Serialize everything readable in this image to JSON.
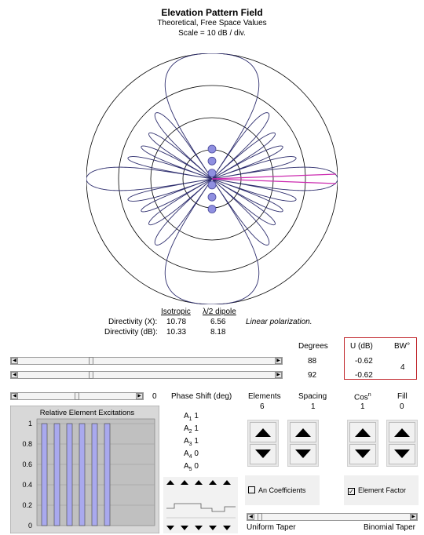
{
  "header": {
    "title": "Elevation Pattern Field",
    "subtitle": "Theoretical, Free Space Values",
    "scale": "Scale = 10  dB / div."
  },
  "directivity": {
    "col_isotropic": "Isotropic",
    "col_dipole": "λ/2 dipole",
    "row_x_label": "Directivity (X):",
    "row_db_label": "Directivity (dB):",
    "x_iso": "10.78",
    "x_dip": "6.56",
    "db_iso": "10.33",
    "db_dip": "8.18",
    "polarization": "Linear polarization."
  },
  "controls": {
    "degrees_label": "Degrees",
    "u_db_label": "U (dB)",
    "bw_label": "BW°",
    "slider1_value": "88",
    "slider2_value": "92",
    "u1": "-0.62",
    "u2": "-0.62",
    "bw": "4",
    "slider3_value": "0",
    "slider1_fraction": 0.28,
    "slider2_fraction": 0.28,
    "slider3_fraction": 0.5
  },
  "excitations": {
    "title": "Relative Element Excitations",
    "y_ticks": [
      "1",
      "0.8",
      "0.6",
      "0.4",
      "0.2",
      "0"
    ],
    "values": [
      1,
      1,
      1,
      1,
      1,
      1
    ]
  },
  "phase": {
    "label": "Phase Shift (deg)",
    "a_labels": [
      "A",
      "A",
      "A",
      "A",
      "A"
    ],
    "a_subs": [
      "1",
      "2",
      "3",
      "4",
      "5"
    ],
    "a_values": [
      "1",
      "1",
      "1",
      "0",
      "0"
    ]
  },
  "params": {
    "elements_label": "Elements",
    "elements_value": "6",
    "spacing_label": "Spacing",
    "spacing_value": "1",
    "cos_label": "Cos",
    "cos_sup": "n",
    "cos_value": "1",
    "fill_label": "Fill",
    "fill_value": "0"
  },
  "checkboxes": {
    "an_coefficients": "An Coefficients",
    "element_factor": "Element Factor",
    "element_factor_checked": "✓"
  },
  "taper": {
    "left": "Uniform Taper",
    "right": "Binomial Taper",
    "fraction": 0.02
  },
  "colors": {
    "pattern": "#2e2e6e",
    "beam": "#cc2bb0",
    "element": "#8f8fe0",
    "bar": "#a9a9ee",
    "chart_bg": "#c0c0c0",
    "highlight_box": "#c0242a"
  }
}
